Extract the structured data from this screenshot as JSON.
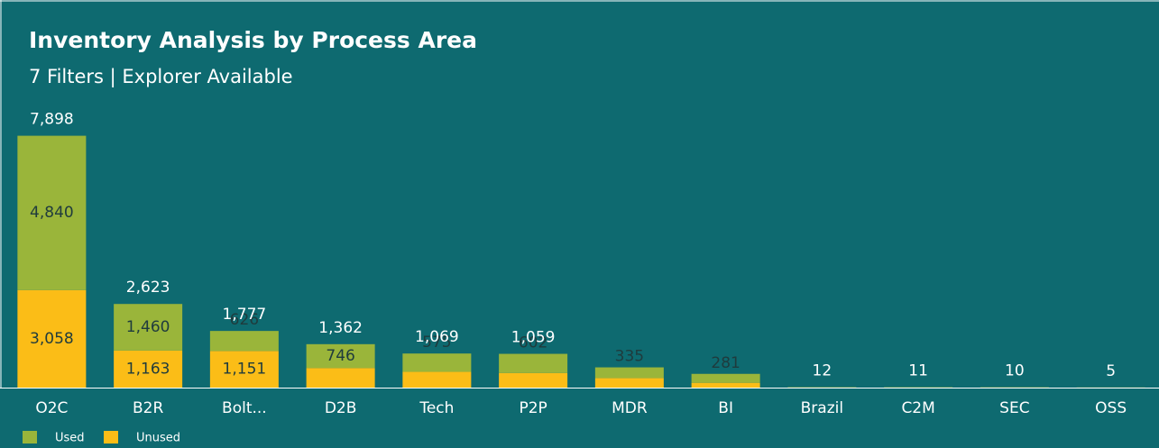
{
  "chart_data": {
    "type": "stacked_bar",
    "title": "Inventory Analysis by Process Area",
    "subtitle": "7 Filters | Explorer Available",
    "categories": [
      "O2C",
      "B2R",
      "Bolt...",
      "D2B",
      "Tech",
      "P2P",
      "MDR",
      "BI",
      "Brazil",
      "C2M",
      "SEC",
      "OSS"
    ],
    "series": [
      {
        "name": "Unused",
        "color": "#fbbd17",
        "values": [
          3058,
          1163,
          1151,
          616,
          494,
          457,
          300,
          150,
          0,
          0,
          0,
          0
        ],
        "value_labels": [
          "3,058",
          "1,163",
          "1,151",
          null,
          null,
          null,
          null,
          null,
          null,
          null,
          null,
          null
        ]
      },
      {
        "name": "Used",
        "color": "#9ab53a",
        "values": [
          4840,
          1460,
          626,
          746,
          575,
          602,
          335,
          281,
          12,
          11,
          10,
          5
        ],
        "value_labels": [
          "4,840",
          "1,460",
          "626",
          "746",
          "575",
          "602",
          "335",
          "281",
          null,
          null,
          null,
          null
        ]
      }
    ],
    "total_labels": [
      "7,898",
      "2,623",
      "1,777",
      "1,362",
      "1,069",
      "1,059",
      null,
      null,
      "12",
      "11",
      "10",
      "5"
    ],
    "legend": [
      "Used",
      "Unused"
    ],
    "legend_position": "bottom-left",
    "ylim": [
      0,
      8000
    ]
  }
}
